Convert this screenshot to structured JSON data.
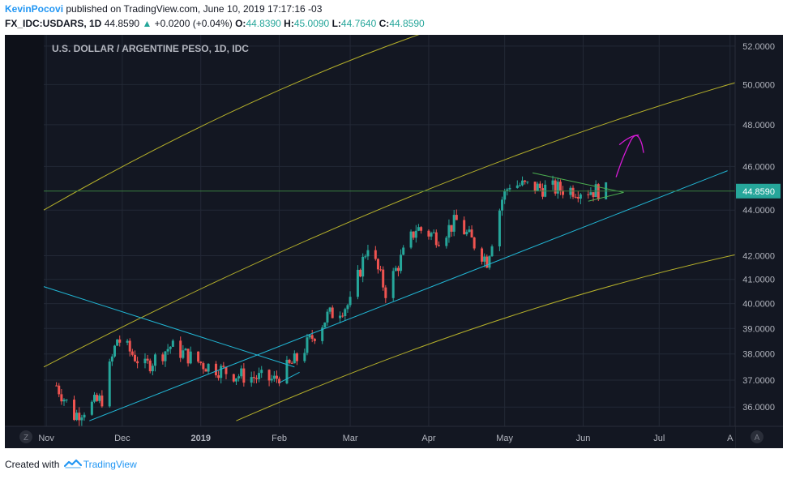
{
  "header": {
    "author": "KevinPocovi",
    "published_text": " published on TradingView.com, June 10, 2019 17:17:16 -03",
    "symbol": "FX_IDC:USDARS, 1D",
    "last": "44.8590",
    "change": "+0.0200 (+0.04%)",
    "o_label": "O:",
    "o_value": "44.8390",
    "h_label": "H:",
    "h_value": "45.0090",
    "l_label": "L:",
    "l_value": "44.7640",
    "c_label": "C:",
    "c_value": "44.8590"
  },
  "chart_title": "U.S. DOLLAR / ARGENTINE PESO, 1D, IDC",
  "price_label": "44.8590",
  "z_label": "Z",
  "a_label": "A",
  "footer": {
    "created_with": "Created with",
    "brand": "TradingView"
  },
  "colors": {
    "background": "#131722",
    "grid": "#232936",
    "candle_up": "#26a69a",
    "candle_down": "#ef5350",
    "channel": "#b5b02a",
    "trendline": "#21b6d4",
    "wedge": "#4caf50",
    "arrow": "#d81bd8",
    "price_line": "#3a7f3f"
  },
  "chart_data": {
    "type": "candlestick",
    "title": "U.S. DOLLAR / ARGENTINE PESO, 1D, IDC",
    "y_scale": "log",
    "ylim": [
      35.3,
      52.6
    ],
    "y_ticks": [
      36,
      37,
      38,
      39,
      40,
      41,
      42,
      44,
      46,
      48,
      50,
      52
    ],
    "y_tick_labels": [
      "36.0000",
      "37.0000",
      "38.0000",
      "39.0000",
      "40.0000",
      "41.0000",
      "42.0000",
      "44.0000",
      "46.0000",
      "48.0000",
      "50.0000",
      "52.0000"
    ],
    "x_range": [
      "2018-10-31",
      "2019-07-31"
    ],
    "x_ticks": [
      {
        "date": "2018-11-01",
        "label": "Nov"
      },
      {
        "date": "2018-12-01",
        "label": "Dec"
      },
      {
        "date": "2019-01-01",
        "label": "2019"
      },
      {
        "date": "2019-02-01",
        "label": "Feb"
      },
      {
        "date": "2019-03-01",
        "label": "Mar"
      },
      {
        "date": "2019-04-01",
        "label": "Apr"
      },
      {
        "date": "2019-05-01",
        "label": "May"
      },
      {
        "date": "2019-06-01",
        "label": "Jun"
      },
      {
        "date": "2019-07-01",
        "label": "Jul"
      },
      {
        "date": "2019-07-29",
        "label": "A"
      }
    ],
    "last_price": 44.859,
    "key_points": [
      {
        "date": "2018-11-05",
        "close": 36.8
      },
      {
        "date": "2018-11-12",
        "close": 35.7
      },
      {
        "date": "2018-11-23",
        "close": 36.3
      },
      {
        "date": "2018-11-29",
        "close": 38.6
      },
      {
        "date": "2018-12-10",
        "close": 37.5
      },
      {
        "date": "2018-12-20",
        "close": 38.3
      },
      {
        "date": "2019-01-02",
        "close": 37.6
      },
      {
        "date": "2019-01-15",
        "close": 37.2
      },
      {
        "date": "2019-01-30",
        "close": 37.0
      },
      {
        "date": "2019-02-08",
        "close": 37.8
      },
      {
        "date": "2019-02-20",
        "close": 39.5
      },
      {
        "date": "2019-03-01",
        "close": 40.0
      },
      {
        "date": "2019-03-08",
        "close": 42.5
      },
      {
        "date": "2019-03-15",
        "close": 40.5
      },
      {
        "date": "2019-03-27",
        "close": 43.2
      },
      {
        "date": "2019-04-05",
        "close": 42.8
      },
      {
        "date": "2019-04-12",
        "close": 43.5
      },
      {
        "date": "2019-04-24",
        "close": 41.8
      },
      {
        "date": "2019-04-30",
        "close": 44.5
      },
      {
        "date": "2019-05-03",
        "close": 45.2
      },
      {
        "date": "2019-05-15",
        "close": 45.0
      },
      {
        "date": "2019-06-10",
        "close": 44.859
      }
    ],
    "trendlines": [
      {
        "name": "upper channel",
        "color": "channel",
        "points": [
          [
            "2018-10-31",
            44.0
          ],
          [
            "2019-04-01",
            52.8
          ]
        ]
      },
      {
        "name": "middle channel",
        "color": "channel",
        "points": [
          [
            "2018-10-31",
            37.5
          ],
          [
            "2019-07-31",
            50.1
          ]
        ]
      },
      {
        "name": "lower channel",
        "color": "channel",
        "points": [
          [
            "2019-01-15",
            35.5
          ],
          [
            "2019-08-11",
            42.3
          ]
        ]
      },
      {
        "name": "descending trendline",
        "color": "trendline",
        "points": [
          [
            "2018-10-31",
            40.7
          ],
          [
            "2019-02-07",
            37.5
          ]
        ]
      },
      {
        "name": "rising trendline",
        "color": "trendline",
        "points": [
          [
            "2018-11-18",
            35.5
          ],
          [
            "2019-07-28",
            45.8
          ]
        ]
      },
      {
        "name": "rising trendline 2",
        "color": "trendline",
        "points": [
          [
            "2019-02-01",
            36.9
          ],
          [
            "2019-02-09",
            37.3
          ]
        ]
      },
      {
        "name": "wedge top",
        "color": "wedge",
        "points": [
          [
            "2019-05-12",
            45.7
          ],
          [
            "2019-06-17",
            44.8
          ]
        ]
      },
      {
        "name": "wedge bottom",
        "color": "wedge",
        "points": [
          [
            "2019-06-03",
            44.4
          ],
          [
            "2019-06-17",
            44.8
          ]
        ]
      }
    ]
  }
}
